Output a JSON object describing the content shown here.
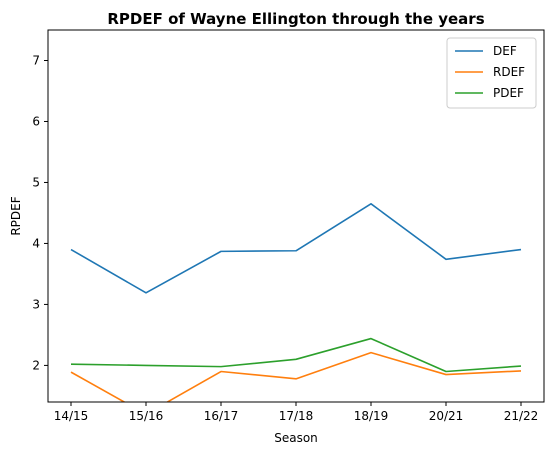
{
  "chart_data": {
    "type": "line",
    "title": "RPDEF of Wayne Ellington through the years",
    "xlabel": "Season",
    "ylabel": "RPDEF",
    "categories": [
      "14/15",
      "15/16",
      "16/17",
      "17/18",
      "18/19",
      "20/21",
      "21/22"
    ],
    "ylim": [
      1.4,
      7.5
    ],
    "yticks": [
      2,
      3,
      4,
      5,
      6,
      7
    ],
    "grid": false,
    "legend_position": "top-right",
    "series": [
      {
        "name": "DEF",
        "color": "#1f77b4",
        "values": [
          3.9,
          3.19,
          3.87,
          3.88,
          4.65,
          3.74,
          3.9
        ]
      },
      {
        "name": "RDEF",
        "color": "#ff7f0e",
        "values": [
          1.89,
          1.2,
          1.9,
          1.78,
          2.21,
          1.85,
          1.91
        ]
      },
      {
        "name": "PDEF",
        "color": "#2ca02c",
        "values": [
          2.02,
          2.0,
          1.98,
          2.1,
          2.44,
          1.9,
          1.99
        ]
      }
    ]
  }
}
